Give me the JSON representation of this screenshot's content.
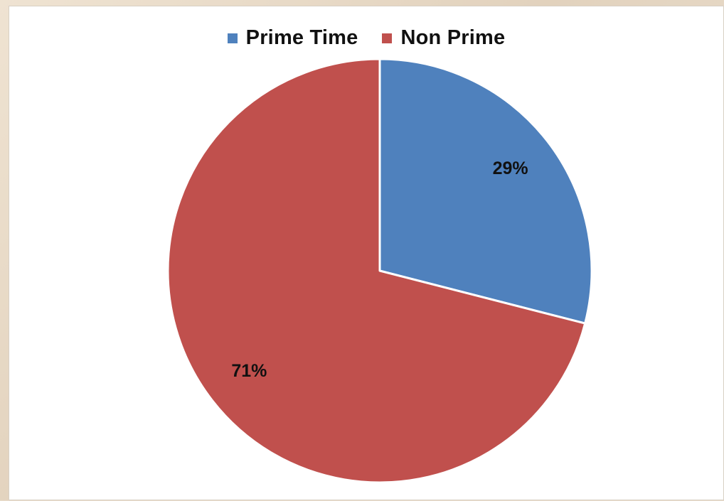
{
  "chart_data": {
    "type": "pie",
    "categories": [
      "Prime Time",
      "Non Prime"
    ],
    "values": [
      29,
      71
    ],
    "data_labels": [
      "29%",
      "71%"
    ],
    "colors": [
      "#4f81bd",
      "#c0504d"
    ],
    "legend_position": "top",
    "title": ""
  },
  "legend": {
    "items": [
      {
        "label": "Prime Time",
        "color": "#4f81bd"
      },
      {
        "label": "Non Prime",
        "color": "#c0504d"
      }
    ]
  }
}
